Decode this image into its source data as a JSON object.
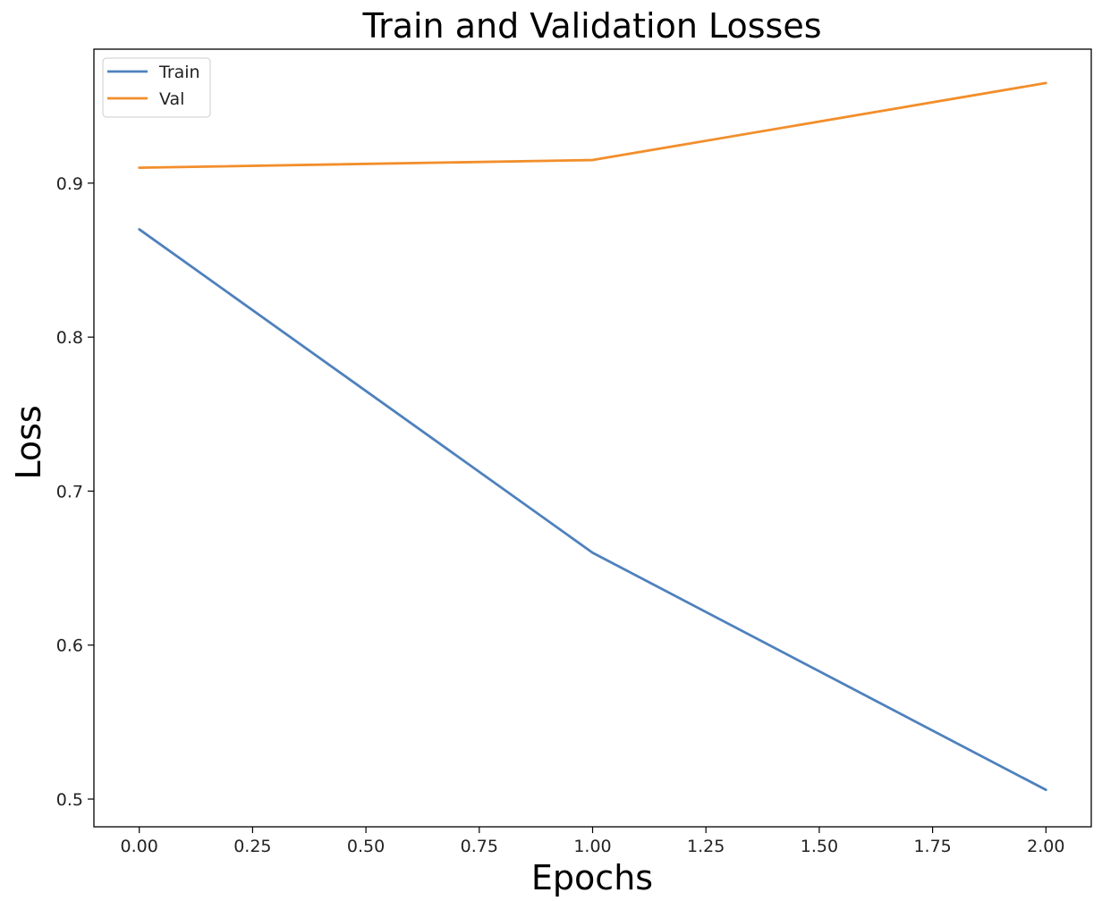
{
  "chart_data": {
    "type": "line",
    "title": "Train and Validation Losses",
    "xlabel": "Epochs",
    "ylabel": "Loss",
    "x": [
      0,
      1,
      2
    ],
    "series": [
      {
        "name": "Train",
        "values": [
          0.87,
          0.66,
          0.506
        ],
        "color": "#4f81bd"
      },
      {
        "name": "Val",
        "values": [
          0.91,
          0.915,
          0.965
        ],
        "color": "#f28e2b"
      }
    ],
    "xlim": [
      -0.1,
      2.1
    ],
    "ylim": [
      0.482,
      0.987
    ],
    "xticks": [
      "0.00",
      "0.25",
      "0.50",
      "0.75",
      "1.00",
      "1.25",
      "1.50",
      "1.75",
      "2.00"
    ],
    "yticks": [
      "0.5",
      "0.6",
      "0.7",
      "0.8",
      "0.9"
    ],
    "grid": false,
    "legend_position": "top-left"
  }
}
